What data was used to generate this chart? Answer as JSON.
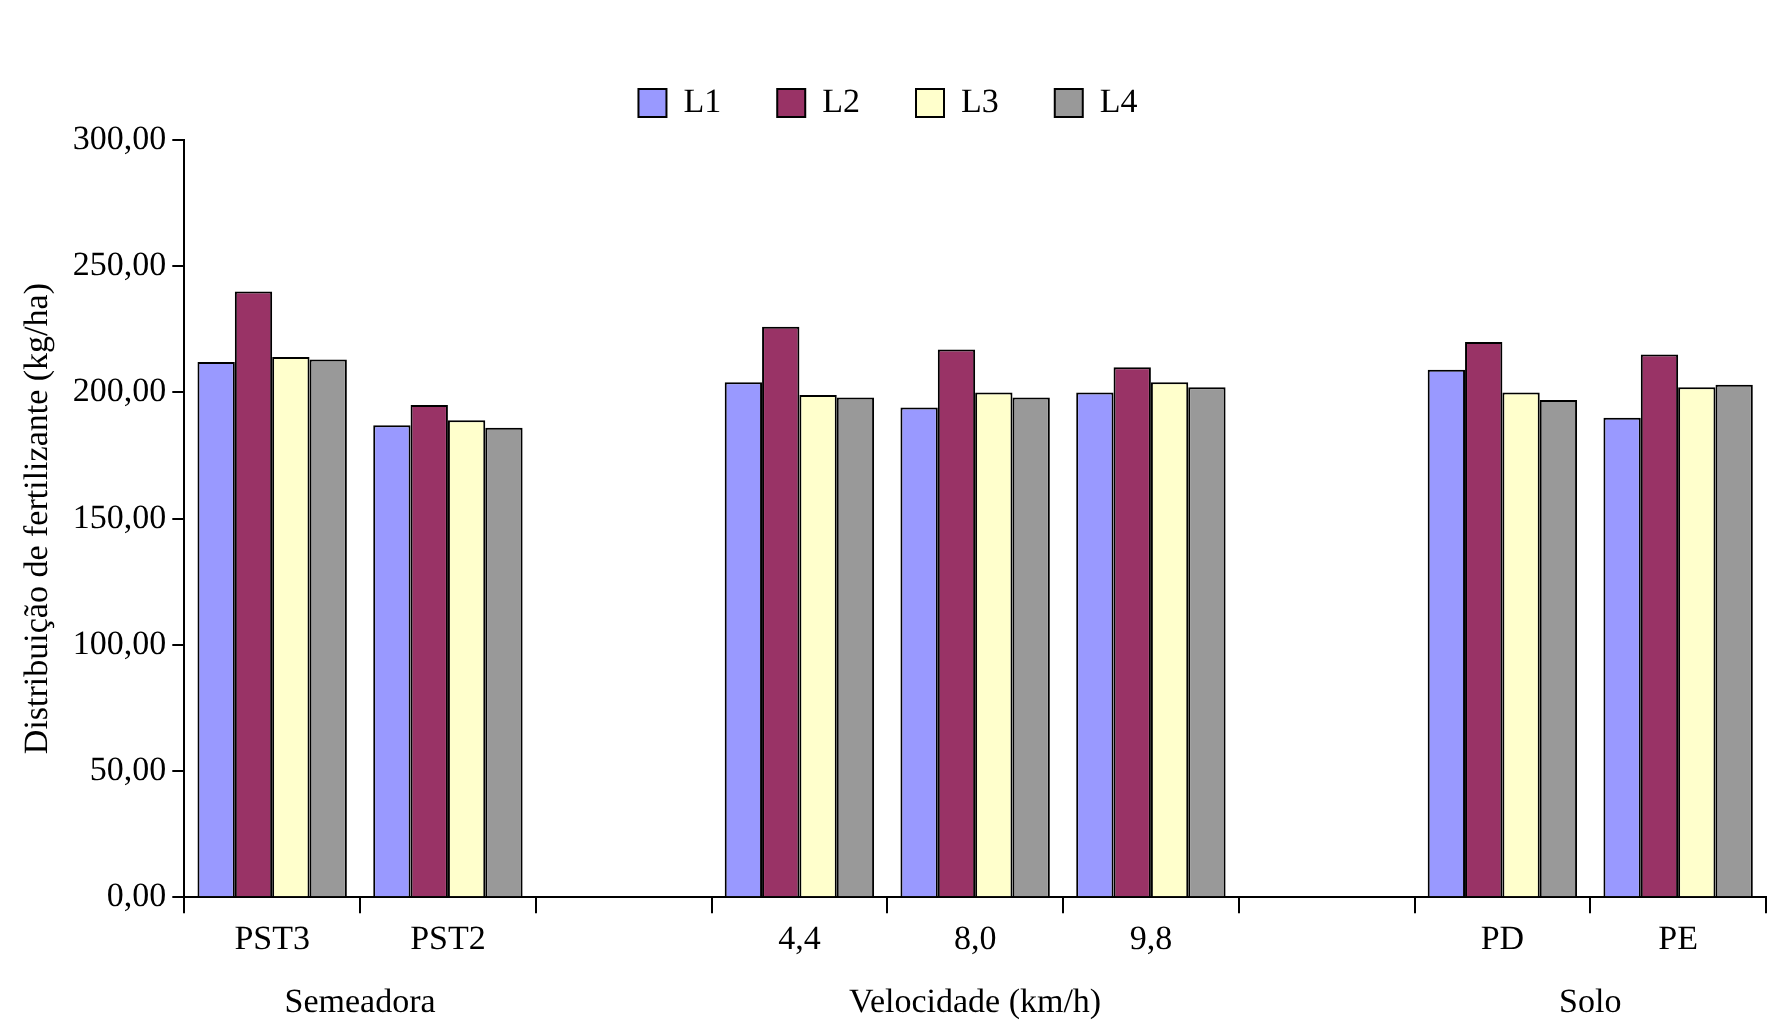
{
  "chart_data": {
    "type": "bar",
    "ylabel": "Distribuição de fertilizante (kg/ha)",
    "categories": [
      "PST3",
      "PST2",
      null,
      "4,4",
      "8,0",
      "9,8",
      null,
      "PD",
      "PE"
    ],
    "series": [
      {
        "name": "L1",
        "color": "#9999ff",
        "values": [
          212,
          187,
          null,
          204,
          194,
          200,
          null,
          209,
          190
        ]
      },
      {
        "name": "L2",
        "color": "#993366",
        "values": [
          240,
          195,
          null,
          226,
          217,
          210,
          null,
          220,
          215
        ]
      },
      {
        "name": "L3",
        "color": "#ffffcc",
        "values": [
          214,
          189,
          null,
          199,
          200,
          204,
          null,
          200,
          202
        ]
      },
      {
        "name": "L4",
        "color": "#999999",
        "values": [
          213,
          186,
          null,
          198,
          198,
          202,
          null,
          197,
          203
        ]
      }
    ],
    "ylim": [
      0,
      300
    ],
    "yticks": [
      {
        "value": 0,
        "label": "0,00"
      },
      {
        "value": 50,
        "label": "50,00"
      },
      {
        "value": 100,
        "label": "100,00"
      },
      {
        "value": 150,
        "label": "150,00"
      },
      {
        "value": 200,
        "label": "200,00"
      },
      {
        "value": 250,
        "label": "250,00"
      },
      {
        "value": 300,
        "label": "300,00"
      }
    ],
    "annotations": [
      "Semeadora",
      "Velocidade (km/h)",
      "Solo"
    ],
    "legend": "top",
    "grid": false
  }
}
